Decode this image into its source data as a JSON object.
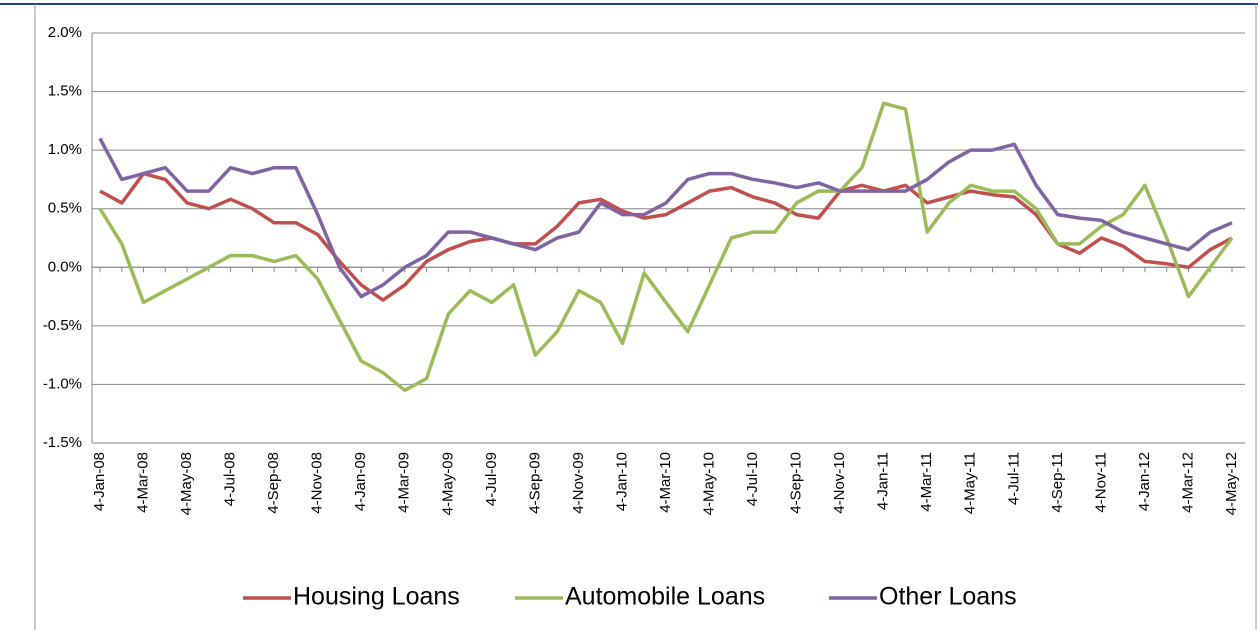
{
  "chart_data": {
    "type": "line",
    "categories": [
      "4-Jan-08",
      null,
      "4-Mar-08",
      null,
      "4-May-08",
      null,
      "4-Jul-08",
      null,
      "4-Sep-08",
      null,
      "4-Nov-08",
      null,
      "4-Jan-09",
      null,
      "4-Mar-09",
      null,
      "4-May-09",
      null,
      "4-Jul-09",
      null,
      "4-Sep-09",
      null,
      "4-Nov-09",
      null,
      "4-Jan-10",
      null,
      "4-Mar-10",
      null,
      "4-May-10",
      null,
      "4-Jul-10",
      null,
      "4-Sep-10",
      null,
      "4-Nov-10",
      null,
      "4-Jan-11",
      null,
      "4-Mar-11",
      null,
      "4-May-11",
      null,
      "4-Jul-11",
      null,
      "4-Sep-11",
      null,
      "4-Nov-11",
      null,
      "4-Jan-12",
      null,
      "4-Mar-12",
      null,
      "4-May-12"
    ],
    "series": [
      {
        "name": "Housing Loans",
        "color": "#c0504d",
        "values": [
          0.65,
          0.55,
          0.8,
          0.75,
          0.55,
          0.5,
          0.58,
          0.5,
          0.38,
          0.38,
          0.28,
          0.05,
          -0.15,
          -0.28,
          -0.15,
          0.05,
          0.15,
          0.22,
          0.25,
          0.2,
          0.2,
          0.35,
          0.55,
          0.58,
          0.48,
          0.42,
          0.45,
          0.55,
          0.65,
          0.68,
          0.6,
          0.55,
          0.45,
          0.42,
          0.65,
          0.7,
          0.65,
          0.7,
          0.55,
          0.6,
          0.65,
          0.62,
          0.6,
          0.45,
          0.2,
          0.12,
          0.25,
          0.18,
          0.05,
          0.03,
          0.0,
          0.15,
          0.25
        ]
      },
      {
        "name": "Automobile Loans",
        "color": "#9bbb59",
        "values": [
          0.5,
          0.2,
          -0.3,
          -0.2,
          -0.1,
          0.0,
          0.1,
          0.1,
          0.05,
          0.1,
          -0.1,
          -0.45,
          -0.8,
          -0.9,
          -1.05,
          -0.95,
          -0.4,
          -0.2,
          -0.3,
          -0.15,
          -0.75,
          -0.55,
          -0.2,
          -0.3,
          -0.65,
          -0.05,
          -0.3,
          -0.55,
          -0.15,
          0.25,
          0.3,
          0.3,
          0.55,
          0.65,
          0.65,
          0.85,
          1.4,
          1.35,
          0.3,
          0.55,
          0.7,
          0.65,
          0.65,
          0.5,
          0.2,
          0.2,
          0.35,
          0.45,
          0.7,
          0.25,
          -0.25,
          0.0,
          0.25
        ]
      },
      {
        "name": "Other Loans",
        "color": "#8064a2",
        "values": [
          1.1,
          0.75,
          0.8,
          0.85,
          0.65,
          0.65,
          0.85,
          0.8,
          0.85,
          0.85,
          0.45,
          0.0,
          -0.25,
          -0.15,
          0.0,
          0.1,
          0.3,
          0.3,
          0.25,
          0.2,
          0.15,
          0.25,
          0.3,
          0.55,
          0.45,
          0.45,
          0.55,
          0.75,
          0.8,
          0.8,
          0.75,
          0.72,
          0.68,
          0.72,
          0.65,
          0.65,
          0.65,
          0.65,
          0.75,
          0.9,
          1.0,
          1.0,
          1.05,
          0.7,
          0.45,
          0.42,
          0.4,
          0.3,
          0.25,
          0.2,
          0.15,
          0.3,
          0.38
        ]
      }
    ],
    "ylim": [
      -1.5,
      2.0
    ],
    "yticks": [
      {
        "value": -1.5,
        "label": "-1.5%"
      },
      {
        "value": -1.0,
        "label": "-1.0%"
      },
      {
        "value": -0.5,
        "label": "-0.5%"
      },
      {
        "value": 0,
        "label": "0.0%"
      },
      {
        "value": 0.5,
        "label": "0.5%"
      },
      {
        "value": 1.0,
        "label": "1.0%"
      },
      {
        "value": 1.5,
        "label": "1.5%"
      },
      {
        "value": 2.0,
        "label": "2.0%"
      }
    ],
    "grid": true,
    "legend": "bottom"
  }
}
